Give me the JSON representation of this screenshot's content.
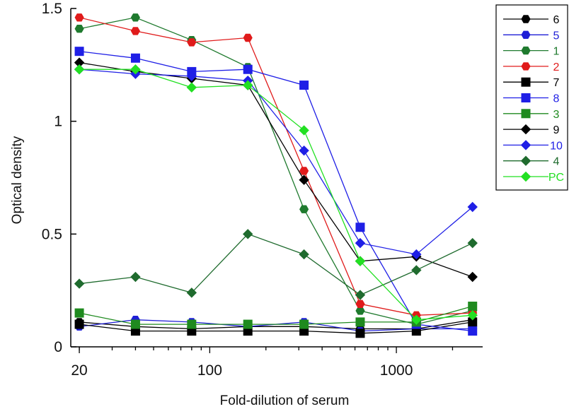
{
  "chart_data": {
    "type": "line",
    "xlabel": "Fold-dilution of serum",
    "ylabel": "Optical density",
    "xscale": "log",
    "xlim": [
      18,
      2900
    ],
    "ylim": [
      0,
      1.5
    ],
    "x": [
      20,
      40,
      80,
      160,
      320,
      640,
      1280,
      2560
    ],
    "x_tick_labels": [
      "20",
      "100",
      "1000"
    ],
    "x_tick_values": [
      20,
      100,
      1000
    ],
    "y_tick_labels": [
      "0",
      "0.5",
      "1",
      "1.5"
    ],
    "y_tick_values": [
      0,
      0.5,
      1,
      1.5
    ],
    "legend_position": "right",
    "series": [
      {
        "name": "6",
        "color": "#000000",
        "marker": "hexagon",
        "values": [
          0.11,
          0.09,
          0.08,
          0.09,
          0.09,
          0.08,
          0.08,
          0.12
        ]
      },
      {
        "name": "5",
        "color": "#1f1fd6",
        "marker": "hexagon",
        "values": [
          0.09,
          0.12,
          0.11,
          0.09,
          0.11,
          0.07,
          0.08,
          0.08
        ]
      },
      {
        "name": "1",
        "color": "#1f7a2e",
        "marker": "hexagon",
        "values": [
          1.41,
          1.46,
          1.36,
          1.24,
          0.61,
          0.16,
          0.1,
          0.16
        ]
      },
      {
        "name": "2",
        "color": "#e01b1b",
        "marker": "hexagon",
        "values": [
          1.46,
          1.4,
          1.35,
          1.37,
          0.78,
          0.19,
          0.14,
          0.15
        ]
      },
      {
        "name": "7",
        "color": "#000000",
        "marker": "square",
        "values": [
          0.1,
          0.07,
          0.07,
          0.07,
          0.07,
          0.06,
          0.07,
          0.11
        ]
      },
      {
        "name": "8",
        "color": "#1f1fe6",
        "marker": "square",
        "values": [
          1.31,
          1.28,
          1.22,
          1.23,
          1.16,
          0.53,
          0.1,
          0.07
        ]
      },
      {
        "name": "3",
        "color": "#1f8a1f",
        "marker": "square",
        "values": [
          0.15,
          0.1,
          0.1,
          0.1,
          0.1,
          0.11,
          0.11,
          0.18
        ]
      },
      {
        "name": "9",
        "color": "#000000",
        "marker": "diamond",
        "values": [
          1.26,
          1.22,
          1.19,
          1.16,
          0.74,
          0.38,
          0.4,
          0.31
        ]
      },
      {
        "name": "10",
        "color": "#1f1fe6",
        "marker": "diamond",
        "values": [
          1.23,
          1.21,
          1.2,
          1.18,
          0.87,
          0.46,
          0.41,
          0.62
        ]
      },
      {
        "name": "4",
        "color": "#1f6b2e",
        "marker": "diamond",
        "values": [
          0.28,
          0.31,
          0.24,
          0.5,
          0.41,
          0.23,
          0.34,
          0.46
        ]
      },
      {
        "name": "PC",
        "color": "#22e022",
        "marker": "diamond",
        "values": [
          1.23,
          1.23,
          1.15,
          1.16,
          0.96,
          0.38,
          0.12,
          0.14
        ]
      }
    ]
  }
}
